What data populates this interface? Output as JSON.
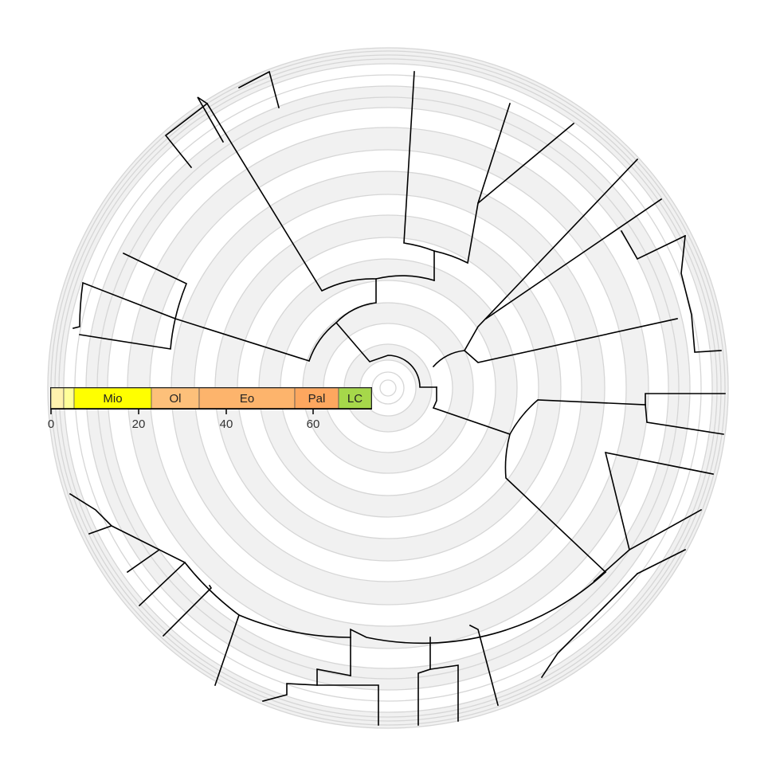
{
  "timescale": {
    "axis_ticks": [
      "0",
      "20",
      "40",
      "60"
    ],
    "epochs": [
      {
        "label": "",
        "color": "#FFF2AE"
      },
      {
        "label": "",
        "color": "#FFFF99"
      },
      {
        "label": "Mio",
        "color": "#FFFF00"
      },
      {
        "label": "Ol",
        "color": "#FDC07A"
      },
      {
        "label": "Eo",
        "color": "#FDB46C"
      },
      {
        "label": "Pal",
        "color": "#FDA75F"
      },
      {
        "label": "LC",
        "color": "#A6D84A"
      }
    ]
  },
  "colors": {
    "band_fill": "#f1f1f1",
    "ring_stroke": "#d6d6d6",
    "branch_stroke": "#000000"
  }
}
